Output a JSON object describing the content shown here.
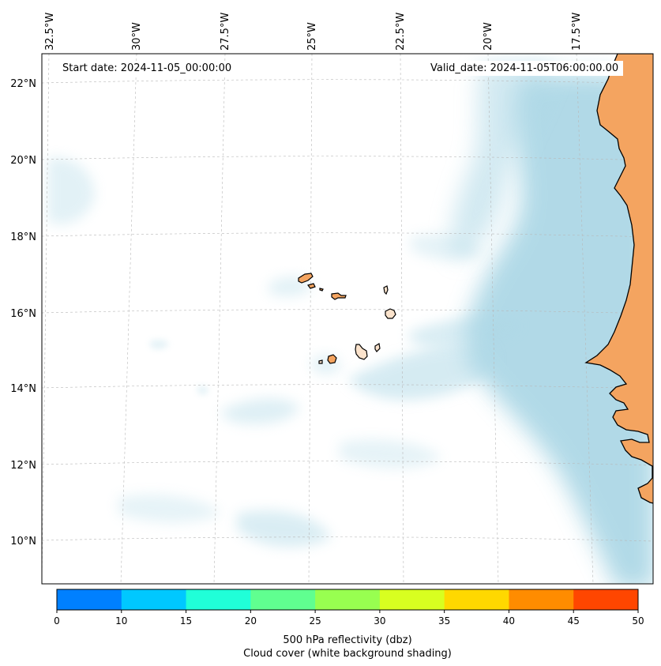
{
  "map": {
    "start_label": "Start date: 2024-11-05_00:00:00",
    "valid_label": "Valid_date: 2024-11-05T06:00:00.00",
    "lon_ticks": [
      "32.5°W",
      "30°W",
      "27.5°W",
      "25°W",
      "22.5°W",
      "20°W",
      "17.5°W"
    ],
    "lat_ticks": [
      "22°N",
      "20°N",
      "18°N",
      "16°N",
      "14°N",
      "12°N",
      "10°N"
    ],
    "land_color": "#f4a460",
    "island_light_color": "#fbe3cc",
    "cloud_color": "#add8e6",
    "coastline_color": "#000000"
  },
  "colorbar": {
    "ticks": [
      "0",
      "10",
      "15",
      "20",
      "25",
      "30",
      "35",
      "40",
      "45",
      "50"
    ],
    "colors": [
      "#0080ff",
      "#00c8ff",
      "#20ffd8",
      "#60ff90",
      "#98ff50",
      "#d8ff20",
      "#ffd800",
      "#ff8c00",
      "#ff4600"
    ],
    "label_line1": "500 hPa reflectivity (dbz)",
    "label_line2": "Cloud cover (white background shading)"
  }
}
